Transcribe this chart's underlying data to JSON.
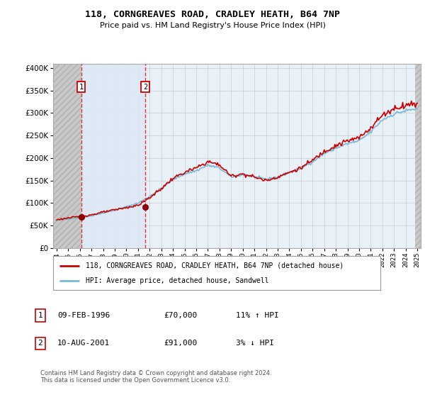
{
  "title": "118, CORNGREAVES ROAD, CRADLEY HEATH, B64 7NP",
  "subtitle": "Price paid vs. HM Land Registry's House Price Index (HPI)",
  "legend_line1": "118, CORNGREAVES ROAD, CRADLEY HEATH, B64 7NP (detached house)",
  "legend_line2": "HPI: Average price, detached house, Sandwell",
  "footer": "Contains HM Land Registry data © Crown copyright and database right 2024.\nThis data is licensed under the Open Government Licence v3.0.",
  "transaction1_label": "1",
  "transaction1_date": "09-FEB-1996",
  "transaction1_price": "£70,000",
  "transaction1_hpi": "11% ↑ HPI",
  "transaction1_year": 1996.12,
  "transaction1_value": 70000,
  "transaction2_label": "2",
  "transaction2_date": "10-AUG-2001",
  "transaction2_price": "£91,000",
  "transaction2_hpi": "3% ↓ HPI",
  "transaction2_year": 2001.62,
  "transaction2_value": 91000,
  "hpi_color": "#7ab8d8",
  "price_color": "#cc0000",
  "marker_color": "#990000",
  "grid_color": "#cccccc",
  "bg_color": "#ffffff",
  "plot_bg": "#e8f0f8",
  "hatch_left_bg": "#d0d0d0",
  "hatch_right_bg": "#d0d0d0",
  "between_bg": "#ddeaf5",
  "ylim_max": 400000,
  "ylim_min": 0,
  "xlim_min": 1993.7,
  "xlim_max": 2025.3,
  "xtick_years": [
    1994,
    1995,
    1996,
    1997,
    1998,
    1999,
    2000,
    2001,
    2002,
    2003,
    2004,
    2005,
    2006,
    2007,
    2008,
    2009,
    2010,
    2011,
    2012,
    2013,
    2014,
    2015,
    2016,
    2017,
    2018,
    2019,
    2020,
    2021,
    2022,
    2023,
    2024,
    2025
  ]
}
